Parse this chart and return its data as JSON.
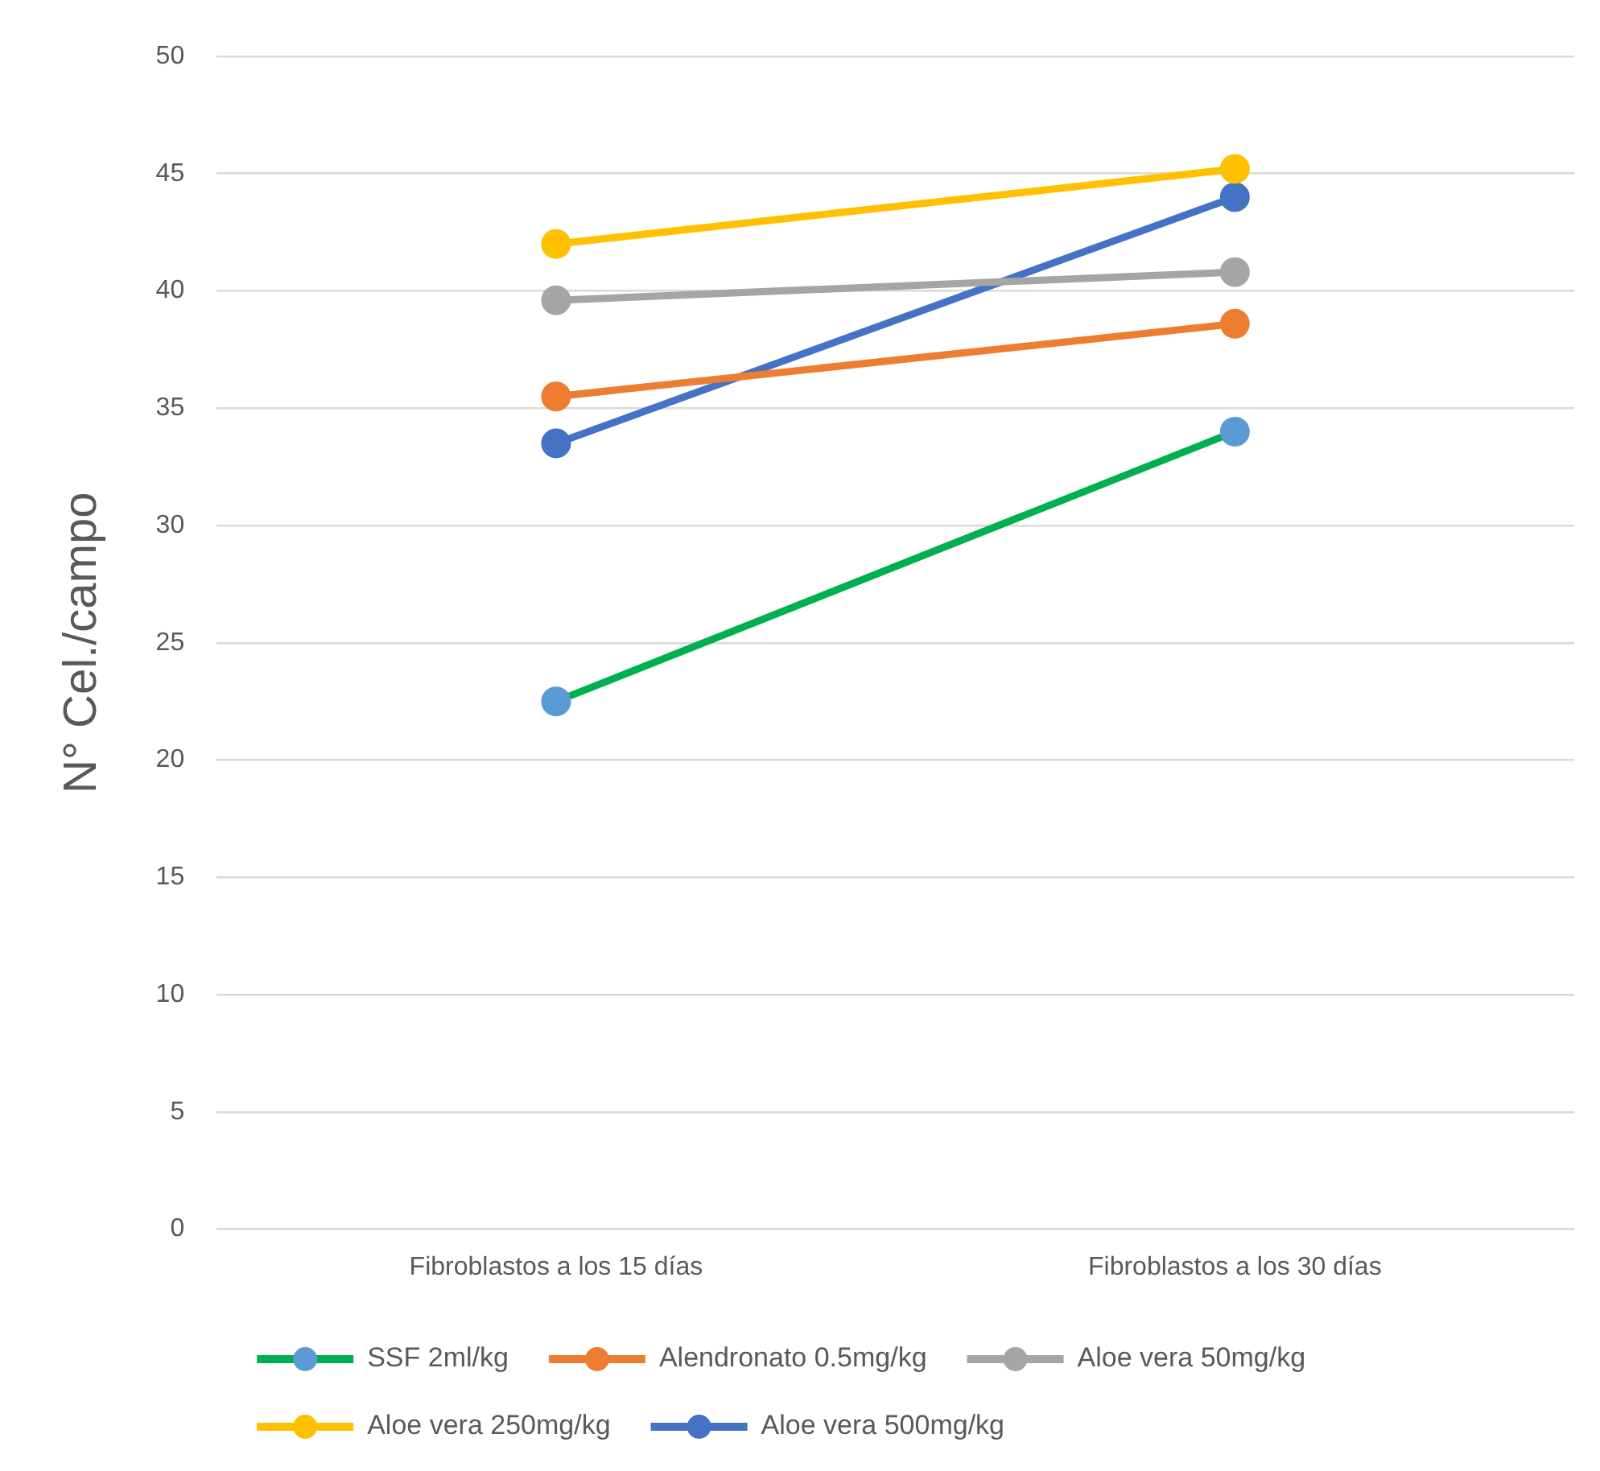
{
  "chart_data": {
    "type": "line",
    "ylabel": "N° Cel./campo",
    "categories": [
      "Fibroblastos a los 15 días",
      "Fibroblastos a los 30 días"
    ],
    "series": [
      {
        "name": "SSF 2ml/kg",
        "color": "#00b050",
        "colors": [
          "#5b9bd5",
          "#5b9bd5"
        ],
        "values": [
          22.5,
          34
        ]
      },
      {
        "name": "Alendronato 0.5mg/kg",
        "color": "#ed7d31",
        "values": [
          35.5,
          38.6
        ]
      },
      {
        "name": "Aloe vera 50mg/kg",
        "color": "#a5a5a5",
        "values": [
          39.6,
          40.8
        ]
      },
      {
        "name": "Aloe vera 250mg/kg",
        "color": "#ffc000",
        "values": [
          42,
          45.2
        ]
      },
      {
        "name": "Aloe vera 500mg/kg",
        "color": "#4472c4",
        "values": [
          33.5,
          44
        ]
      }
    ],
    "ylim": [
      0,
      50
    ],
    "yticks": [
      0,
      5,
      10,
      15,
      20,
      25,
      30,
      35,
      40,
      45,
      50
    ],
    "grid": "y",
    "legend": "bottom",
    "marker": "circle",
    "line_style": "solid"
  }
}
